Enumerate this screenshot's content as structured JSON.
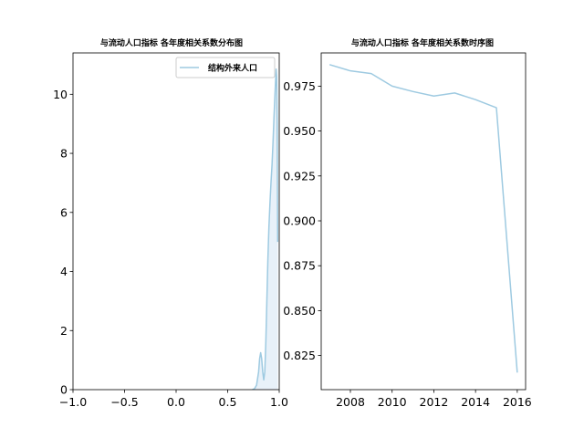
{
  "colors": {
    "series": "#9ecae1",
    "fill": "#deebf7",
    "axis": "#000000"
  },
  "chart_data": [
    {
      "type": "area",
      "title": "与流动人口指标 各年度相关系数分布图",
      "xlim": [
        -1.0,
        1.0
      ],
      "ylim": [
        0,
        11.4
      ],
      "x_ticks": [
        -1.0,
        -0.5,
        0.0,
        0.5,
        1.0
      ],
      "x_tick_labels": [
        "−1.0",
        "−0.5",
        "0.0",
        "0.5",
        "1.0"
      ],
      "y_ticks": [
        0,
        2,
        4,
        6,
        8,
        10
      ],
      "y_tick_labels": [
        "0",
        "2",
        "4",
        "6",
        "8",
        "10"
      ],
      "legend": {
        "position": "top-right",
        "entries": [
          "结构外来人口"
        ]
      },
      "series": [
        {
          "name": "结构外来人口",
          "x": [
            0.74,
            0.76,
            0.78,
            0.8,
            0.81,
            0.82,
            0.83,
            0.84,
            0.85,
            0.86,
            0.87,
            0.88,
            0.89,
            0.9,
            0.91,
            0.92,
            0.93,
            0.94,
            0.95,
            0.96,
            0.965,
            0.97,
            0.975,
            0.98,
            0.985
          ],
          "y": [
            0.0,
            0.03,
            0.15,
            0.6,
            1.05,
            1.25,
            1.05,
            0.6,
            0.33,
            0.6,
            1.6,
            3.0,
            4.4,
            5.5,
            6.3,
            7.0,
            7.6,
            8.4,
            9.3,
            10.1,
            10.5,
            10.85,
            10.6,
            9.0,
            5.0
          ]
        }
      ]
    },
    {
      "type": "line",
      "title": "与流动人口指标 各年度相关系数时序图",
      "xlim": [
        2006.6,
        2016.4
      ],
      "ylim": [
        0.806,
        0.9935
      ],
      "x_ticks": [
        2008,
        2010,
        2012,
        2014,
        2016
      ],
      "x_tick_labels": [
        "2008",
        "2010",
        "2012",
        "2014",
        "2016"
      ],
      "y_ticks": [
        0.825,
        0.85,
        0.875,
        0.9,
        0.925,
        0.95,
        0.975
      ],
      "y_tick_labels": [
        "0.825",
        "0.850",
        "0.875",
        "0.900",
        "0.925",
        "0.950",
        "0.975"
      ],
      "series": [
        {
          "x": [
            2007,
            2008,
            2009,
            2010,
            2011,
            2012,
            2013,
            2014,
            2015,
            2016
          ],
          "y": [
            0.987,
            0.9835,
            0.982,
            0.975,
            0.972,
            0.9695,
            0.9712,
            0.9675,
            0.963,
            0.8155
          ]
        }
      ]
    }
  ]
}
